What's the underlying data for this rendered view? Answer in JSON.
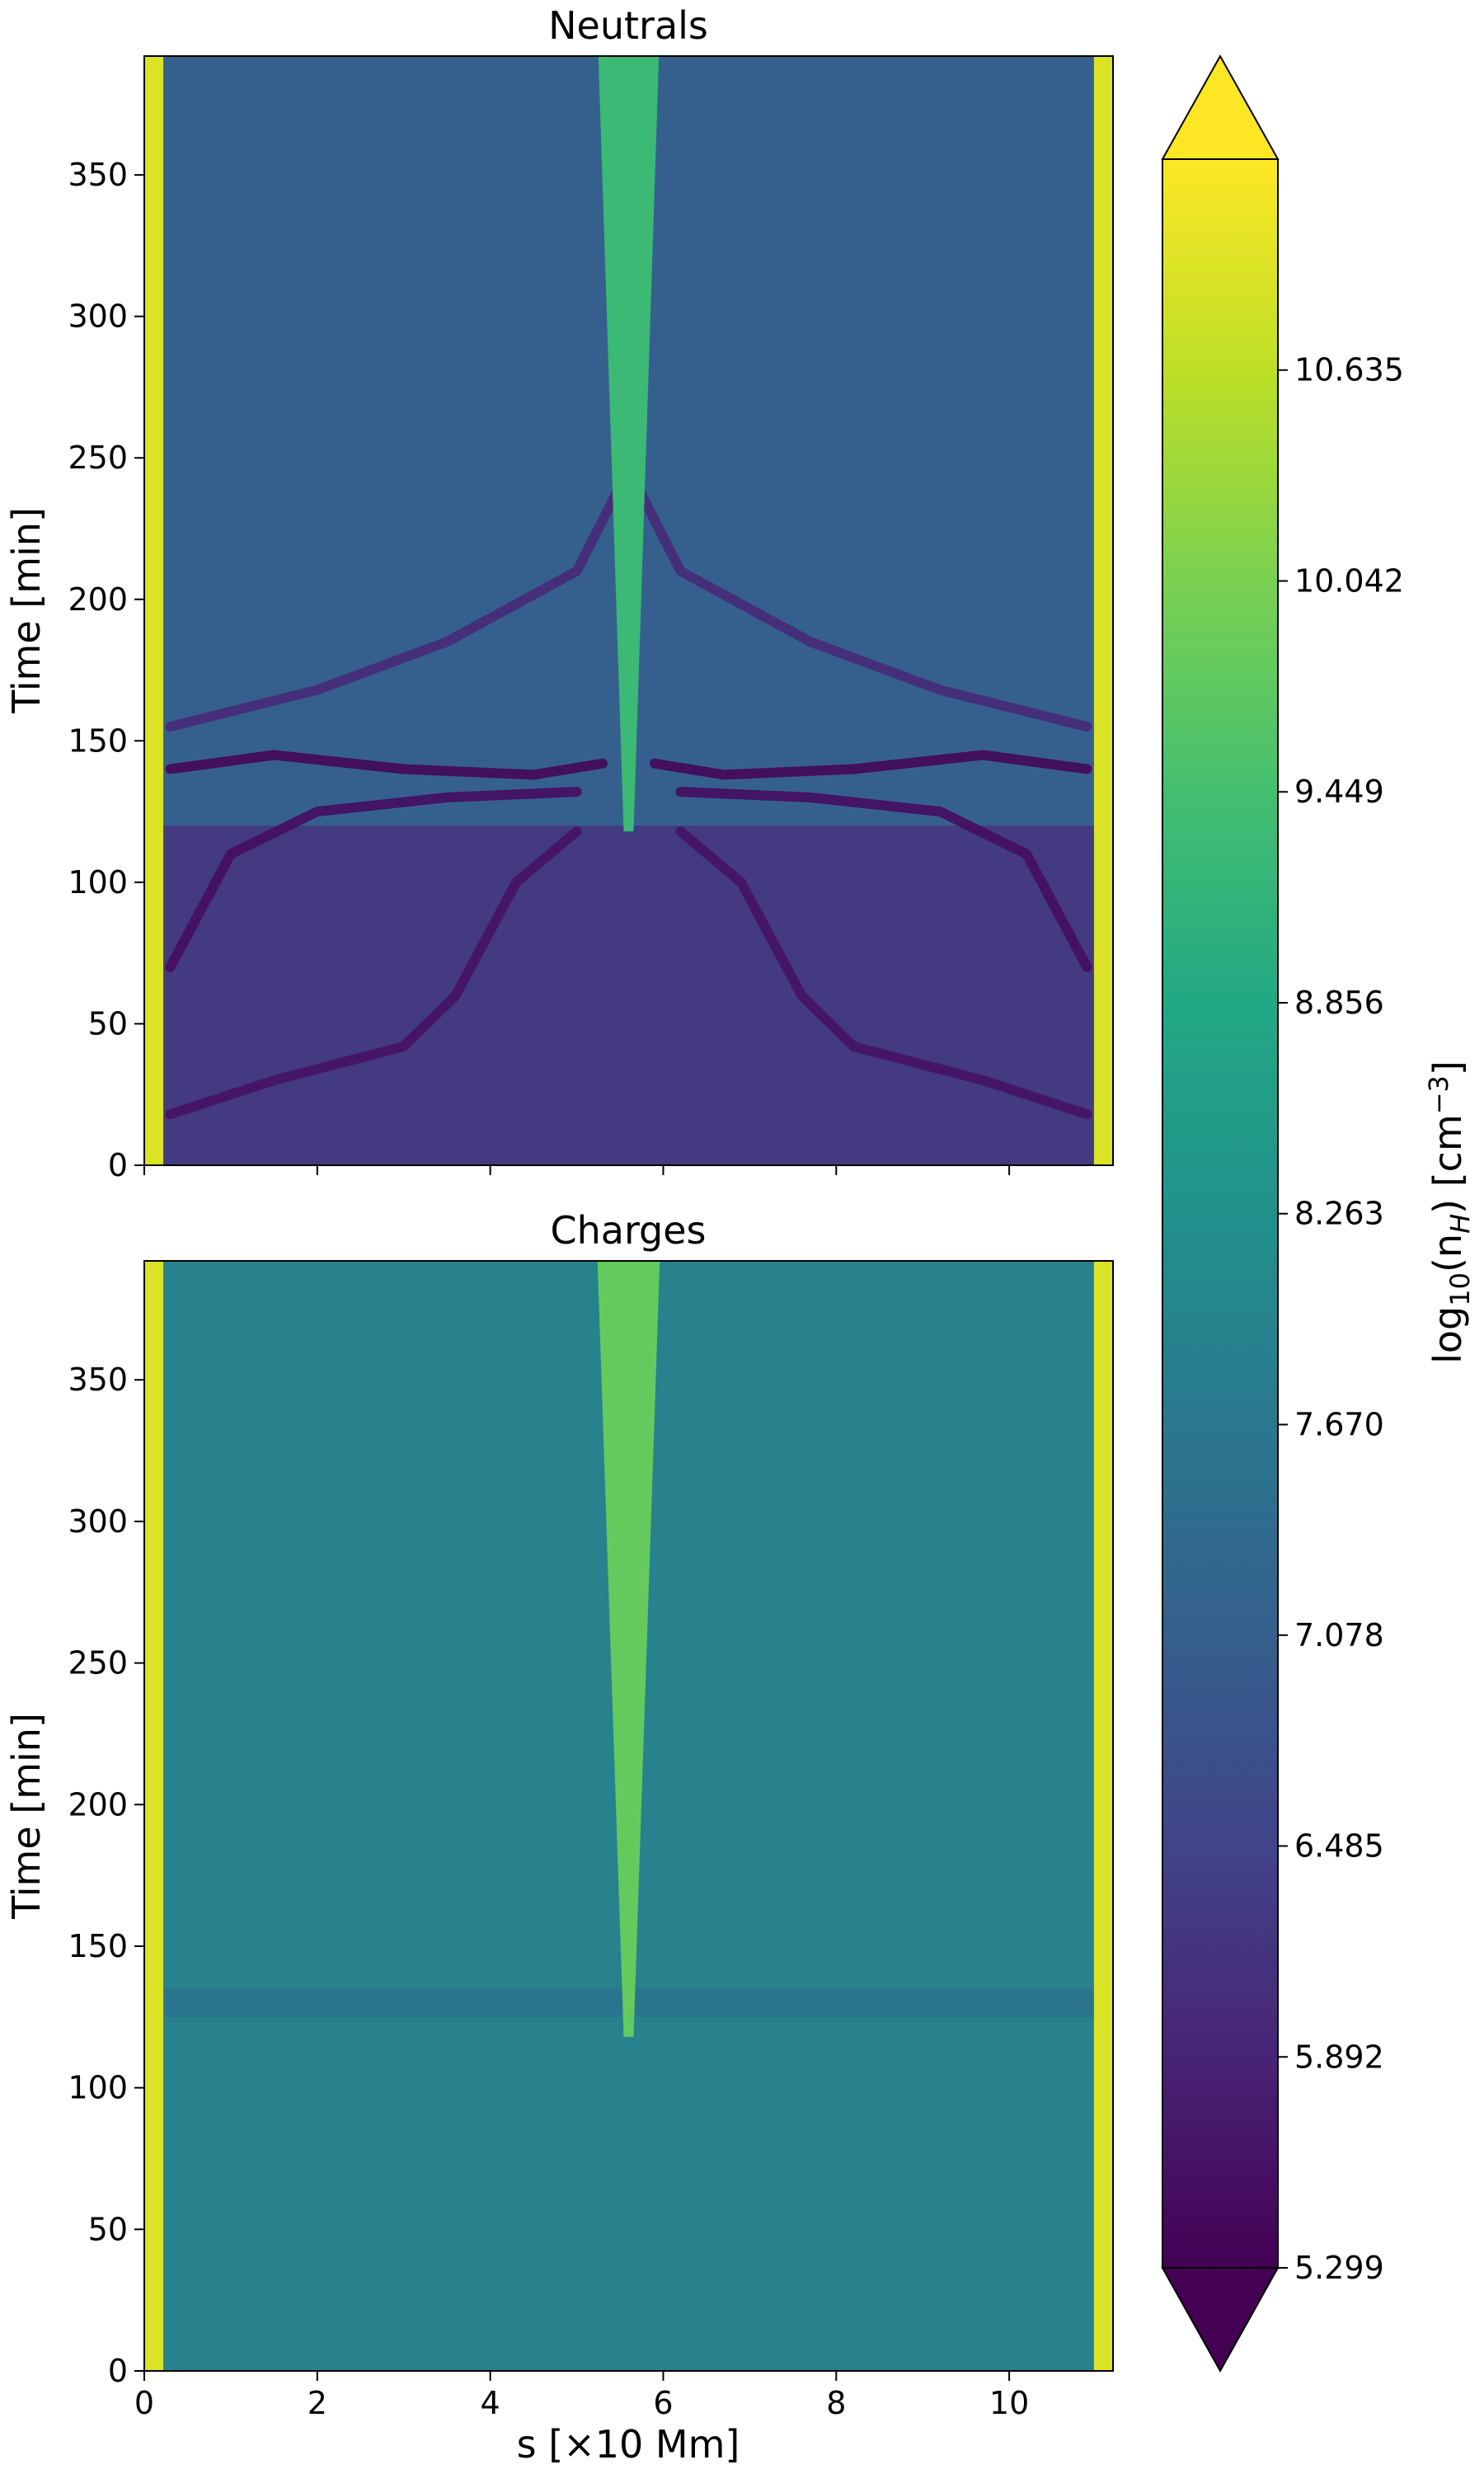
{
  "chart_data": {
    "type": "heatmap",
    "panels": [
      {
        "title": "Neutrals",
        "ylabel": "Time [min]",
        "xlim": [
          0,
          11.2
        ],
        "ylim": [
          0,
          392
        ],
        "yticks": [
          0,
          50,
          100,
          150,
          200,
          250,
          300,
          350
        ],
        "xticks": [
          0,
          2,
          4,
          6,
          8,
          10
        ],
        "show_x_ticklabels": false,
        "background_level": 7.1,
        "early_level": 6.3,
        "transition_time": 120,
        "boundary_level": 10.9,
        "jet": {
          "x_center": 5.6,
          "start_time": 118,
          "top_half_width": 0.35,
          "level": 9.3
        },
        "dark_bands": [
          {
            "points": [
              [
                0.3,
                18
              ],
              [
                1.5,
                30
              ],
              [
                3.0,
                42
              ],
              [
                3.6,
                60
              ],
              [
                4.3,
                100
              ],
              [
                5.0,
                118
              ]
            ],
            "level": 5.6
          },
          {
            "points": [
              [
                0.3,
                70
              ],
              [
                1.0,
                110
              ],
              [
                2.0,
                125
              ],
              [
                3.5,
                130
              ],
              [
                5.0,
                132
              ]
            ],
            "level": 5.5
          },
          {
            "points": [
              [
                0.3,
                140
              ],
              [
                1.5,
                145
              ],
              [
                3.0,
                140
              ],
              [
                4.5,
                138
              ],
              [
                5.3,
                142
              ]
            ],
            "level": 5.4
          },
          {
            "points": [
              [
                0.3,
                155
              ],
              [
                2.0,
                168
              ],
              [
                3.5,
                185
              ],
              [
                5.0,
                210
              ],
              [
                5.5,
                240
              ]
            ],
            "level": 6.0
          }
        ]
      },
      {
        "title": "Charges",
        "ylabel": "Time [min]",
        "xlabel": "s [×10 Mm]",
        "xlim": [
          0,
          11.2
        ],
        "ylim": [
          0,
          392
        ],
        "yticks": [
          0,
          50,
          100,
          150,
          200,
          250,
          300,
          350
        ],
        "xticks": [
          0,
          2,
          4,
          6,
          8,
          10
        ],
        "show_x_ticklabels": true,
        "background_level": 7.9,
        "boundary_level": 10.9,
        "band": {
          "time": 130,
          "level": 7.5
        },
        "jet": {
          "x_center": 5.6,
          "start_time": 118,
          "top_half_width": 0.36,
          "level": 9.8
        }
      }
    ],
    "colorbar": {
      "label_main": "log",
      "label_sub": "10",
      "label_mid": "(n",
      "label_var": "H",
      "label_units": ") [cm",
      "label_exp": "−3",
      "label_close": "]",
      "min": 5.299,
      "max": 11.228,
      "extend": "both",
      "ticks": [
        "5.299",
        "5.892",
        "6.485",
        "7.078",
        "7.670",
        "8.263",
        "8.856",
        "9.449",
        "10.042",
        "10.635"
      ],
      "colormap": "viridis"
    }
  }
}
